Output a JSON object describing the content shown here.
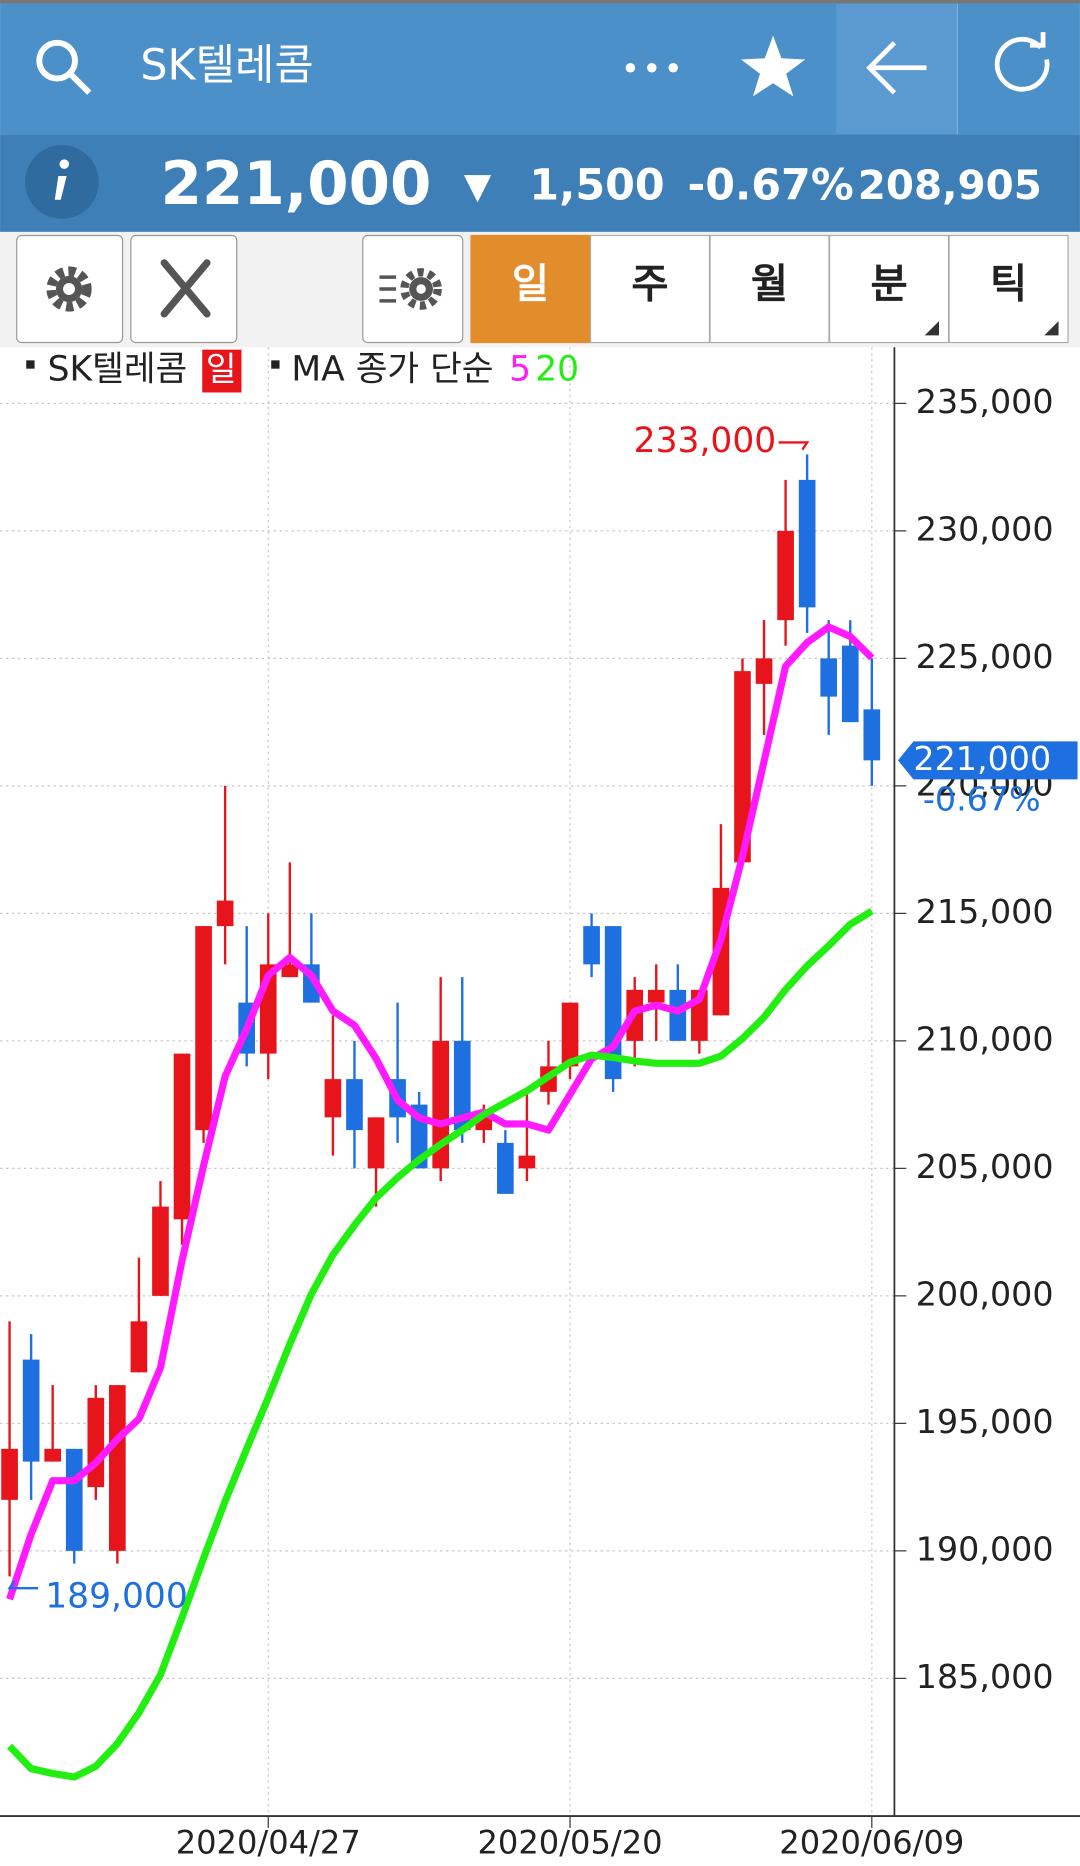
{
  "header": {
    "title": "SK텔레콤"
  },
  "quote": {
    "price": "221,000",
    "change_arrow": "▼",
    "change": "1,500",
    "change_pct": "-0.67%",
    "volume": "208,905"
  },
  "period_tabs": [
    "일",
    "주",
    "월",
    "분",
    "틱"
  ],
  "active_tab": 0,
  "legend": {
    "symbol": "SK텔레콤",
    "period": "일",
    "ma_label": "MA 종가 단순"
  },
  "chart_data": {
    "type": "candlestick",
    "categories": [
      null,
      null,
      null,
      null,
      null,
      null,
      null,
      null,
      null,
      null,
      null,
      null,
      "2020/04/27",
      null,
      null,
      null,
      null,
      null,
      null,
      null,
      null,
      null,
      null,
      null,
      null,
      null,
      "2020/05/20",
      null,
      null,
      null,
      null,
      null,
      null,
      null,
      null,
      null,
      null,
      null,
      null,
      null,
      "2020/06/09"
    ],
    "open": [
      192000,
      197500,
      193500,
      194000,
      192500,
      190000,
      197000,
      200000,
      203000,
      206500,
      214500,
      211500,
      209500,
      212500,
      213000,
      207000,
      208500,
      205000,
      208500,
      207500,
      205000,
      210000,
      206500,
      206000,
      205000,
      208000,
      209000,
      214500,
      214500,
      210000,
      211500,
      212000,
      210000,
      211000,
      217000,
      224000,
      226500,
      232000,
      225000,
      225500,
      223000
    ],
    "high": [
      199000,
      198500,
      196500,
      194000,
      196500,
      196500,
      201500,
      204500,
      209500,
      214500,
      220000,
      214500,
      215000,
      217000,
      215000,
      211000,
      210000,
      207000,
      211500,
      208000,
      212500,
      212500,
      207500,
      206500,
      208000,
      210000,
      211500,
      215000,
      214500,
      212500,
      213000,
      213000,
      212000,
      218500,
      225000,
      226500,
      232000,
      233000,
      226500,
      226500,
      225000
    ],
    "low": [
      189000,
      192000,
      193500,
      189500,
      192000,
      189500,
      197000,
      200000,
      202000,
      206000,
      213000,
      209000,
      208500,
      212500,
      211500,
      205500,
      205000,
      203500,
      206000,
      205000,
      204500,
      206000,
      206000,
      204000,
      204500,
      207500,
      208500,
      212500,
      208000,
      209000,
      210000,
      210000,
      209500,
      211000,
      217000,
      222000,
      225500,
      226000,
      222000,
      222500,
      220000
    ],
    "close": [
      194000,
      193500,
      194000,
      190000,
      196000,
      196500,
      199000,
      203500,
      209500,
      214500,
      215500,
      209500,
      213000,
      213000,
      211500,
      208500,
      206500,
      207000,
      207000,
      205000,
      210000,
      206500,
      207000,
      204000,
      205500,
      209000,
      211500,
      213000,
      208500,
      212000,
      212000,
      210000,
      212000,
      216000,
      224500,
      225000,
      230000,
      227000,
      223500,
      222500,
      221000
    ],
    "up_color": "#e8141b",
    "down_color": "#1e6fe0",
    "lines": [
      {
        "name": "5",
        "color": "#ff1aff",
        "values": [
          188100,
          190650,
          192750,
          192750,
          193450,
          194380,
          195170,
          197180,
          201380,
          205110,
          208610,
          210470,
          212570,
          213270,
          212570,
          211170,
          210610,
          209310,
          207680,
          206980,
          206740,
          206980,
          207210,
          206740,
          206740,
          206500,
          207900,
          209300,
          209770,
          211170,
          211400,
          211170,
          211630,
          213970,
          217230,
          220960,
          224690,
          225620,
          226230,
          225860,
          225020
        ]
      },
      {
        "name": "20",
        "color": "#22ee11",
        "values": [
          182340,
          181460,
          181270,
          181130,
          181550,
          182440,
          183650,
          185140,
          187380,
          189710,
          191950,
          194000,
          196010,
          198110,
          200070,
          201610,
          202770,
          203840,
          204640,
          205340,
          205940,
          206500,
          207110,
          207580,
          208040,
          208600,
          209160,
          209440,
          209350,
          209210,
          209120,
          209120,
          209120,
          209400,
          210090,
          210930,
          212010,
          212940,
          213730,
          214570,
          215090
        ]
      }
    ],
    "ylim": [
      179600,
      237200
    ],
    "yticks": [
      {
        "value": 185000,
        "label": "185,000"
      },
      {
        "value": 190000,
        "label": "190,000"
      },
      {
        "value": 195000,
        "label": "195,000"
      },
      {
        "value": 200000,
        "label": "200,000"
      },
      {
        "value": 205000,
        "label": "205,000"
      },
      {
        "value": 210000,
        "label": "210,000"
      },
      {
        "value": 215000,
        "label": "215,000"
      },
      {
        "value": 220000,
        "label": "220,000"
      },
      {
        "value": 225000,
        "label": "225,000"
      },
      {
        "value": 230000,
        "label": "230,000"
      },
      {
        "value": 235000,
        "label": "235,000"
      }
    ],
    "grid": true,
    "annotations": {
      "high": {
        "value": 233000,
        "label": "233,000"
      },
      "low": {
        "value": 189000,
        "label": "189,000"
      },
      "last": {
        "value": 221000,
        "label": "221,000"
      },
      "last_change": "-0.67%"
    }
  }
}
